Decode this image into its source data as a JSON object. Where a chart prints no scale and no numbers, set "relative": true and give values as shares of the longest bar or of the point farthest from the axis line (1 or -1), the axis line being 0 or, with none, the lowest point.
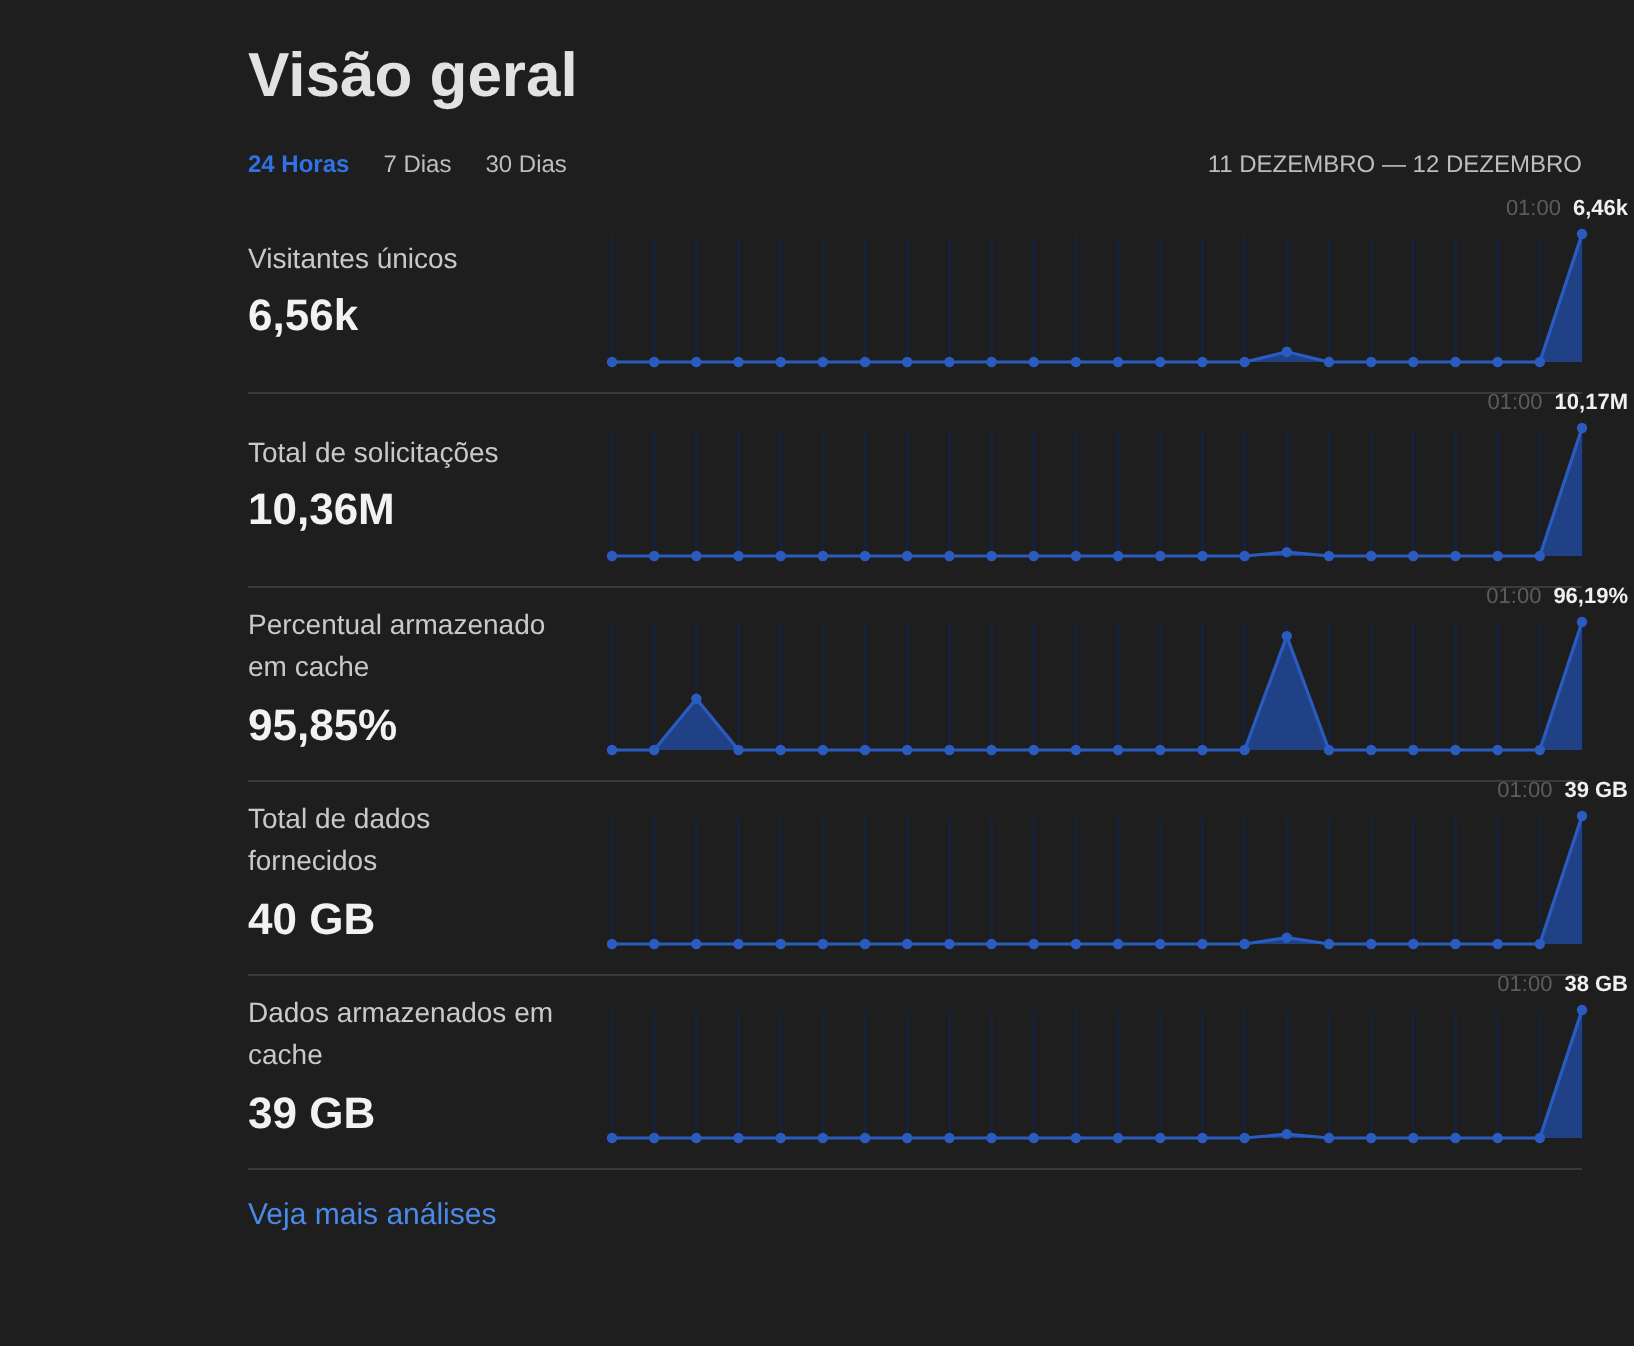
{
  "chart_data": [
    {
      "type": "other",
      "title": "Visão geral",
      "annotations": [
        "24 Horas",
        "7 Dias",
        "30 Dias",
        "11 DEZEMBRO — 12 DEZEMBRO"
      ]
    },
    {
      "type": "area",
      "title": "Visitantes únicos",
      "subtitle": "6,56k",
      "categories": [
        null,
        null,
        null,
        null,
        null,
        null,
        null,
        null,
        null,
        null,
        null,
        null,
        null,
        null,
        null,
        null,
        null,
        null,
        null,
        null,
        null,
        null,
        null,
        null
      ],
      "relative": true,
      "values": [
        0,
        0,
        0,
        0,
        0,
        0,
        0,
        0,
        0,
        0,
        0,
        0,
        0,
        0,
        0,
        0,
        0.08,
        0,
        0,
        0,
        0,
        0,
        0,
        1
      ],
      "color": "#2a5cc0",
      "marker": "circle",
      "grid": "x",
      "annotations": [
        "01:00",
        "6,46k"
      ]
    },
    {
      "type": "area",
      "title": "Total de solicitações",
      "subtitle": "10,36M",
      "categories": [
        null,
        null,
        null,
        null,
        null,
        null,
        null,
        null,
        null,
        null,
        null,
        null,
        null,
        null,
        null,
        null,
        null,
        null,
        null,
        null,
        null,
        null,
        null,
        null
      ],
      "relative": true,
      "values": [
        0,
        0,
        0,
        0,
        0,
        0,
        0,
        0,
        0,
        0,
        0,
        0,
        0,
        0,
        0,
        0,
        0.03,
        0,
        0,
        0,
        0,
        0,
        0,
        1
      ],
      "color": "#2a5cc0",
      "marker": "circle",
      "grid": "x",
      "annotations": [
        "01:00",
        "10,17M"
      ]
    },
    {
      "type": "area",
      "title": "Percentual armazenado em cache",
      "subtitle": "95,85%",
      "categories": [
        null,
        null,
        null,
        null,
        null,
        null,
        null,
        null,
        null,
        null,
        null,
        null,
        null,
        null,
        null,
        null,
        null,
        null,
        null,
        null,
        null,
        null,
        null,
        null
      ],
      "relative": true,
      "values": [
        0,
        0,
        0.4,
        0,
        0,
        0,
        0,
        0,
        0,
        0,
        0,
        0,
        0,
        0,
        0,
        0,
        0.89,
        0,
        0,
        0,
        0,
        0,
        0,
        1
      ],
      "color": "#2a5cc0",
      "marker": "circle",
      "grid": "x",
      "annotations": [
        "01:00",
        "96,19%"
      ]
    },
    {
      "type": "area",
      "title": "Total de dados fornecidos",
      "subtitle": "40 GB",
      "categories": [
        null,
        null,
        null,
        null,
        null,
        null,
        null,
        null,
        null,
        null,
        null,
        null,
        null,
        null,
        null,
        null,
        null,
        null,
        null,
        null,
        null,
        null,
        null,
        null
      ],
      "relative": true,
      "values": [
        0,
        0,
        0,
        0,
        0,
        0,
        0,
        0,
        0,
        0,
        0,
        0,
        0,
        0,
        0,
        0,
        0.05,
        0,
        0,
        0,
        0,
        0,
        0,
        1
      ],
      "color": "#2a5cc0",
      "marker": "circle",
      "grid": "x",
      "annotations": [
        "01:00",
        "39 GB"
      ]
    },
    {
      "type": "area",
      "title": "Dados armazenados em cache",
      "subtitle": "39 GB",
      "categories": [
        null,
        null,
        null,
        null,
        null,
        null,
        null,
        null,
        null,
        null,
        null,
        null,
        null,
        null,
        null,
        null,
        null,
        null,
        null,
        null,
        null,
        null,
        null,
        null
      ],
      "relative": true,
      "values": [
        0,
        0,
        0,
        0,
        0,
        0,
        0,
        0,
        0,
        0,
        0,
        0,
        0,
        0,
        0,
        0,
        0.03,
        0,
        0,
        0,
        0,
        0,
        0,
        1
      ],
      "color": "#2a5cc0",
      "marker": "circle",
      "grid": "x",
      "annotations": [
        "01:00",
        "38 GB"
      ]
    },
    {
      "type": "other",
      "annotations": [
        "Veja mais análises"
      ]
    }
  ]
}
